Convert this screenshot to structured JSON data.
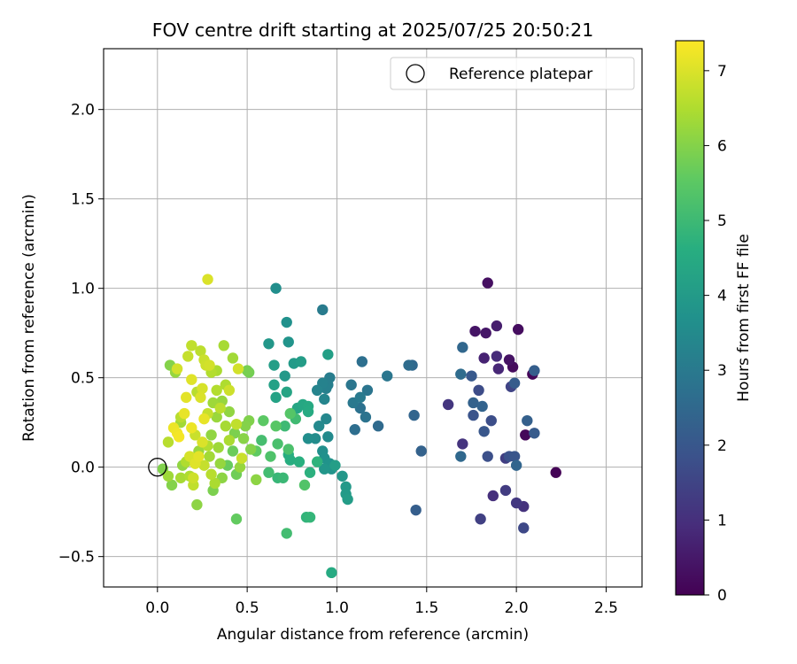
{
  "chart_data": {
    "type": "scatter",
    "title": "FOV centre drift starting at 2025/07/25 20:50:21",
    "xlabel": "Angular distance from reference (arcmin)",
    "ylabel": "Rotation from reference (arcmin)",
    "xlim": [
      -0.3,
      2.7
    ],
    "ylim": [
      -0.67,
      2.34
    ],
    "xticks": [
      0.0,
      0.5,
      1.0,
      1.5,
      2.0,
      2.5
    ],
    "xtick_labels": [
      "0.0",
      "0.5",
      "1.0",
      "1.5",
      "2.0",
      "2.5"
    ],
    "yticks": [
      -0.5,
      0.0,
      0.5,
      1.0,
      1.5,
      2.0
    ],
    "ytick_labels": [
      "−0.5",
      "0.0",
      "0.5",
      "1.0",
      "1.5",
      "2.0"
    ],
    "grid": true,
    "colormap": "viridis",
    "colorbar": {
      "label": "Hours from first FF file",
      "min": 0,
      "max": 7.4,
      "ticks": [
        0,
        1,
        2,
        3,
        4,
        5,
        6,
        7
      ],
      "tick_labels": [
        "0",
        "1",
        "2",
        "3",
        "4",
        "5",
        "6",
        "7"
      ]
    },
    "legend": {
      "position": "top-right",
      "entries": [
        {
          "label": "Reference platepar",
          "marker": "open-circle",
          "color": "#000000"
        }
      ]
    },
    "reference_point": {
      "x": 0.0,
      "y": 0.0
    },
    "points": [
      {
        "x": 2.22,
        "y": -0.03,
        "h": 0.05
      },
      {
        "x": 2.09,
        "y": 0.52,
        "h": 0.1
      },
      {
        "x": 2.05,
        "y": 0.18,
        "h": 0.12
      },
      {
        "x": 1.84,
        "y": 1.03,
        "h": 0.3
      },
      {
        "x": 1.98,
        "y": 0.56,
        "h": 0.2
      },
      {
        "x": 1.77,
        "y": 0.76,
        "h": 0.4
      },
      {
        "x": 1.96,
        "y": 0.6,
        "h": 0.35
      },
      {
        "x": 2.01,
        "y": 0.77,
        "h": 0.25
      },
      {
        "x": 1.83,
        "y": 0.75,
        "h": 0.45
      },
      {
        "x": 1.89,
        "y": 0.79,
        "h": 0.6
      },
      {
        "x": 1.82,
        "y": 0.61,
        "h": 0.7
      },
      {
        "x": 1.9,
        "y": 0.55,
        "h": 0.8
      },
      {
        "x": 1.89,
        "y": 0.62,
        "h": 0.9
      },
      {
        "x": 1.87,
        "y": -0.16,
        "h": 1.0
      },
      {
        "x": 2.04,
        "y": -0.22,
        "h": 1.05
      },
      {
        "x": 2.0,
        "y": -0.2,
        "h": 1.2
      },
      {
        "x": 1.7,
        "y": 0.13,
        "h": 1.1
      },
      {
        "x": 1.62,
        "y": 0.35,
        "h": 1.15
      },
      {
        "x": 1.94,
        "y": -0.13,
        "h": 1.3
      },
      {
        "x": 1.8,
        "y": -0.29,
        "h": 1.4
      },
      {
        "x": 1.97,
        "y": 0.45,
        "h": 1.5
      },
      {
        "x": 1.94,
        "y": 0.05,
        "h": 1.35
      },
      {
        "x": 2.04,
        "y": -0.34,
        "h": 1.6
      },
      {
        "x": 1.79,
        "y": 0.43,
        "h": 1.7
      },
      {
        "x": 1.84,
        "y": 0.06,
        "h": 1.8
      },
      {
        "x": 1.86,
        "y": 0.26,
        "h": 1.75
      },
      {
        "x": 1.76,
        "y": 0.29,
        "h": 1.9
      },
      {
        "x": 1.82,
        "y": 0.2,
        "h": 2.0
      },
      {
        "x": 1.75,
        "y": 0.51,
        "h": 2.05
      },
      {
        "x": 1.96,
        "y": 0.06,
        "h": 1.85
      },
      {
        "x": 1.99,
        "y": 0.06,
        "h": 1.95
      },
      {
        "x": 2.1,
        "y": 0.19,
        "h": 2.1
      },
      {
        "x": 1.99,
        "y": 0.47,
        "h": 2.15
      },
      {
        "x": 2.1,
        "y": 0.54,
        "h": 2.2
      },
      {
        "x": 2.06,
        "y": 0.26,
        "h": 2.25
      },
      {
        "x": 1.76,
        "y": 0.36,
        "h": 2.3
      },
      {
        "x": 1.81,
        "y": 0.34,
        "h": 2.35
      },
      {
        "x": 2.0,
        "y": 0.01,
        "h": 2.4
      },
      {
        "x": 1.7,
        "y": 0.67,
        "h": 2.45
      },
      {
        "x": 1.69,
        "y": 0.06,
        "h": 2.5
      },
      {
        "x": 1.44,
        "y": -0.24,
        "h": 2.2
      },
      {
        "x": 1.47,
        "y": 0.09,
        "h": 2.3
      },
      {
        "x": 1.43,
        "y": 0.29,
        "h": 2.4
      },
      {
        "x": 1.42,
        "y": 0.57,
        "h": 2.5
      },
      {
        "x": 1.4,
        "y": 0.57,
        "h": 2.6
      },
      {
        "x": 1.69,
        "y": 0.52,
        "h": 2.6
      },
      {
        "x": 1.23,
        "y": 0.23,
        "h": 2.55
      },
      {
        "x": 1.14,
        "y": 0.59,
        "h": 2.7
      },
      {
        "x": 1.1,
        "y": 0.21,
        "h": 2.65
      },
      {
        "x": 1.13,
        "y": 0.33,
        "h": 2.75
      },
      {
        "x": 1.16,
        "y": 0.28,
        "h": 2.8
      },
      {
        "x": 1.17,
        "y": 0.43,
        "h": 2.85
      },
      {
        "x": 1.08,
        "y": 0.46,
        "h": 2.9
      },
      {
        "x": 1.09,
        "y": 0.36,
        "h": 2.95
      },
      {
        "x": 1.13,
        "y": 0.39,
        "h": 3.0
      },
      {
        "x": 1.28,
        "y": 0.51,
        "h": 2.9
      },
      {
        "x": 0.92,
        "y": 0.88,
        "h": 3.05
      },
      {
        "x": 0.96,
        "y": 0.5,
        "h": 3.1
      },
      {
        "x": 0.95,
        "y": 0.46,
        "h": 3.15
      },
      {
        "x": 0.94,
        "y": 0.44,
        "h": 3.2
      },
      {
        "x": 0.92,
        "y": 0.47,
        "h": 3.25
      },
      {
        "x": 0.89,
        "y": 0.43,
        "h": 3.3
      },
      {
        "x": 0.93,
        "y": 0.38,
        "h": 3.35
      },
      {
        "x": 0.94,
        "y": 0.27,
        "h": 3.4
      },
      {
        "x": 0.9,
        "y": 0.23,
        "h": 3.45
      },
      {
        "x": 0.95,
        "y": 0.17,
        "h": 3.5
      },
      {
        "x": 0.88,
        "y": 0.16,
        "h": 3.55
      },
      {
        "x": 0.84,
        "y": 0.16,
        "h": 3.6
      },
      {
        "x": 0.92,
        "y": 0.09,
        "h": 3.65
      },
      {
        "x": 0.93,
        "y": 0.05,
        "h": 3.7
      },
      {
        "x": 0.96,
        "y": 0.02,
        "h": 3.75
      },
      {
        "x": 0.97,
        "y": -0.01,
        "h": 3.8
      },
      {
        "x": 0.93,
        "y": -0.01,
        "h": 3.85
      },
      {
        "x": 1.03,
        "y": -0.05,
        "h": 3.9
      },
      {
        "x": 1.05,
        "y": -0.11,
        "h": 3.95
      },
      {
        "x": 1.05,
        "y": -0.15,
        "h": 4.0
      },
      {
        "x": 1.06,
        "y": -0.18,
        "h": 4.05
      },
      {
        "x": 0.99,
        "y": 0.01,
        "h": 4.1
      },
      {
        "x": 0.66,
        "y": 1.0,
        "h": 3.6
      },
      {
        "x": 0.72,
        "y": 0.81,
        "h": 3.7
      },
      {
        "x": 0.73,
        "y": 0.7,
        "h": 3.8
      },
      {
        "x": 0.62,
        "y": 0.69,
        "h": 3.9
      },
      {
        "x": 0.71,
        "y": 0.51,
        "h": 3.95
      },
      {
        "x": 0.76,
        "y": 0.58,
        "h": 4.0
      },
      {
        "x": 0.8,
        "y": 0.59,
        "h": 4.05
      },
      {
        "x": 0.65,
        "y": 0.57,
        "h": 4.1
      },
      {
        "x": 0.95,
        "y": 0.63,
        "h": 4.15
      },
      {
        "x": 0.65,
        "y": 0.46,
        "h": 4.2
      },
      {
        "x": 0.66,
        "y": 0.39,
        "h": 4.25
      },
      {
        "x": 0.72,
        "y": 0.42,
        "h": 4.3
      },
      {
        "x": 0.78,
        "y": 0.33,
        "h": 4.35
      },
      {
        "x": 0.81,
        "y": 0.35,
        "h": 4.4
      },
      {
        "x": 0.84,
        "y": 0.34,
        "h": 4.45
      },
      {
        "x": 0.84,
        "y": 0.31,
        "h": 4.5
      },
      {
        "x": 0.73,
        "y": 0.07,
        "h": 4.55
      },
      {
        "x": 0.74,
        "y": 0.04,
        "h": 4.6
      },
      {
        "x": 0.79,
        "y": 0.03,
        "h": 4.65
      },
      {
        "x": 0.85,
        "y": -0.03,
        "h": 4.7
      },
      {
        "x": 0.89,
        "y": 0.03,
        "h": 4.75
      },
      {
        "x": 0.83,
        "y": -0.28,
        "h": 4.8
      },
      {
        "x": 0.85,
        "y": -0.28,
        "h": 4.85
      },
      {
        "x": 0.97,
        "y": -0.59,
        "h": 4.5
      },
      {
        "x": 0.67,
        "y": -0.06,
        "h": 4.9
      },
      {
        "x": 0.7,
        "y": -0.06,
        "h": 4.95
      },
      {
        "x": 0.71,
        "y": 0.23,
        "h": 5.0
      },
      {
        "x": 0.77,
        "y": 0.27,
        "h": 5.05
      },
      {
        "x": 0.62,
        "y": -0.03,
        "h": 5.1
      },
      {
        "x": 0.58,
        "y": 0.15,
        "h": 5.15
      },
      {
        "x": 0.67,
        "y": 0.13,
        "h": 5.2
      },
      {
        "x": 0.73,
        "y": 0.1,
        "h": 5.25
      },
      {
        "x": 0.63,
        "y": 0.06,
        "h": 5.3
      },
      {
        "x": 0.72,
        "y": -0.37,
        "h": 5.1
      },
      {
        "x": 0.82,
        "y": -0.1,
        "h": 5.35
      },
      {
        "x": 0.74,
        "y": 0.3,
        "h": 5.4
      },
      {
        "x": 0.66,
        "y": 0.23,
        "h": 5.45
      },
      {
        "x": 0.59,
        "y": 0.26,
        "h": 5.5
      },
      {
        "x": 0.55,
        "y": 0.09,
        "h": 5.55
      },
      {
        "x": 0.44,
        "y": -0.29,
        "h": 5.6
      },
      {
        "x": 0.39,
        "y": 0.01,
        "h": 5.65
      },
      {
        "x": 0.42,
        "y": 0.09,
        "h": 5.7
      },
      {
        "x": 0.44,
        "y": -0.04,
        "h": 5.75
      },
      {
        "x": 0.51,
        "y": 0.53,
        "h": 5.8
      },
      {
        "x": 0.5,
        "y": 0.54,
        "h": 5.85
      },
      {
        "x": 0.43,
        "y": 0.19,
        "h": 5.9
      },
      {
        "x": 0.51,
        "y": 0.26,
        "h": 5.95
      },
      {
        "x": 0.49,
        "y": 0.23,
        "h": 6.0
      },
      {
        "x": 0.48,
        "y": 0.16,
        "h": 6.05
      },
      {
        "x": 0.55,
        "y": -0.07,
        "h": 6.1
      },
      {
        "x": 0.4,
        "y": 0.31,
        "h": 6.15
      },
      {
        "x": 0.36,
        "y": 0.37,
        "h": 6.2
      },
      {
        "x": 0.33,
        "y": 0.28,
        "h": 6.25
      },
      {
        "x": 0.31,
        "y": 0.36,
        "h": 6.3
      },
      {
        "x": 0.42,
        "y": 0.61,
        "h": 6.35
      },
      {
        "x": 0.37,
        "y": 0.68,
        "h": 6.4
      },
      {
        "x": 0.33,
        "y": 0.54,
        "h": 6.45
      },
      {
        "x": 0.38,
        "y": 0.46,
        "h": 6.5
      },
      {
        "x": 0.33,
        "y": 0.43,
        "h": 6.55
      },
      {
        "x": 0.22,
        "y": 0.42,
        "h": 6.6
      },
      {
        "x": 0.24,
        "y": 0.65,
        "h": 6.65
      },
      {
        "x": 0.19,
        "y": 0.68,
        "h": 6.7
      },
      {
        "x": 0.17,
        "y": 0.62,
        "h": 6.75
      },
      {
        "x": 0.26,
        "y": 0.6,
        "h": 6.8
      },
      {
        "x": 0.27,
        "y": 0.57,
        "h": 6.85
      },
      {
        "x": 0.29,
        "y": 0.57,
        "h": 6.9
      },
      {
        "x": 0.25,
        "y": 0.44,
        "h": 6.95
      },
      {
        "x": 0.24,
        "y": 0.39,
        "h": 7.0
      },
      {
        "x": 0.19,
        "y": 0.49,
        "h": 7.05
      },
      {
        "x": 0.16,
        "y": 0.39,
        "h": 7.1
      },
      {
        "x": 0.15,
        "y": 0.3,
        "h": 7.15
      },
      {
        "x": 0.09,
        "y": 0.22,
        "h": 7.2
      },
      {
        "x": 0.11,
        "y": 0.19,
        "h": 7.25
      },
      {
        "x": 0.12,
        "y": 0.17,
        "h": 7.3
      },
      {
        "x": 0.28,
        "y": 1.05,
        "h": 7.0
      },
      {
        "x": 0.07,
        "y": 0.57,
        "h": 6.0
      },
      {
        "x": 0.1,
        "y": 0.53,
        "h": 6.2
      },
      {
        "x": 0.11,
        "y": 0.55,
        "h": 6.9
      },
      {
        "x": 0.06,
        "y": 0.14,
        "h": 6.6
      },
      {
        "x": 0.06,
        "y": -0.05,
        "h": 6.3
      },
      {
        "x": 0.08,
        "y": -0.1,
        "h": 6.0
      },
      {
        "x": 0.13,
        "y": -0.06,
        "h": 6.4
      },
      {
        "x": 0.18,
        "y": -0.05,
        "h": 6.5
      },
      {
        "x": 0.2,
        "y": -0.1,
        "h": 6.7
      },
      {
        "x": 0.2,
        "y": -0.06,
        "h": 6.85
      },
      {
        "x": 0.22,
        "y": -0.21,
        "h": 6.1
      },
      {
        "x": 0.18,
        "y": 0.06,
        "h": 6.95
      },
      {
        "x": 0.21,
        "y": 0.02,
        "h": 7.05
      },
      {
        "x": 0.23,
        "y": 0.06,
        "h": 7.1
      },
      {
        "x": 0.25,
        "y": 0.14,
        "h": 7.0
      },
      {
        "x": 0.26,
        "y": 0.27,
        "h": 7.15
      },
      {
        "x": 0.19,
        "y": 0.22,
        "h": 7.2
      },
      {
        "x": 0.21,
        "y": 0.18,
        "h": 6.8
      },
      {
        "x": 0.3,
        "y": -0.04,
        "h": 6.6
      },
      {
        "x": 0.32,
        "y": -0.09,
        "h": 6.45
      },
      {
        "x": 0.31,
        "y": -0.13,
        "h": 5.9
      },
      {
        "x": 0.35,
        "y": 0.02,
        "h": 6.2
      },
      {
        "x": 0.36,
        "y": -0.06,
        "h": 6.1
      },
      {
        "x": 0.34,
        "y": 0.11,
        "h": 6.3
      },
      {
        "x": 0.28,
        "y": 0.12,
        "h": 6.55
      },
      {
        "x": 0.26,
        "y": 0.01,
        "h": 6.75
      },
      {
        "x": 0.29,
        "y": 0.06,
        "h": 6.35
      },
      {
        "x": 0.23,
        "y": 0.09,
        "h": 6.25
      },
      {
        "x": 0.16,
        "y": 0.03,
        "h": 6.5
      },
      {
        "x": 0.14,
        "y": 0.01,
        "h": 6.15
      },
      {
        "x": 0.03,
        "y": -0.01,
        "h": 5.95
      },
      {
        "x": 0.38,
        "y": 0.23,
        "h": 6.4
      },
      {
        "x": 0.35,
        "y": 0.33,
        "h": 6.65
      },
      {
        "x": 0.4,
        "y": 0.43,
        "h": 6.85
      },
      {
        "x": 0.44,
        "y": 0.24,
        "h": 6.7
      },
      {
        "x": 0.47,
        "y": 0.05,
        "h": 6.8
      },
      {
        "x": 0.45,
        "y": 0.55,
        "h": 6.9
      },
      {
        "x": 0.3,
        "y": 0.53,
        "h": 6.55
      },
      {
        "x": 0.4,
        "y": 0.15,
        "h": 6.45
      },
      {
        "x": 0.52,
        "y": 0.1,
        "h": 6.0
      },
      {
        "x": 0.46,
        "y": 0.0,
        "h": 6.2
      },
      {
        "x": 0.13,
        "y": 0.28,
        "h": 6.6
      },
      {
        "x": 0.13,
        "y": 0.25,
        "h": 6.35
      },
      {
        "x": 0.3,
        "y": 0.18,
        "h": 6.15
      },
      {
        "x": 0.28,
        "y": 0.3,
        "h": 6.75
      }
    ]
  }
}
